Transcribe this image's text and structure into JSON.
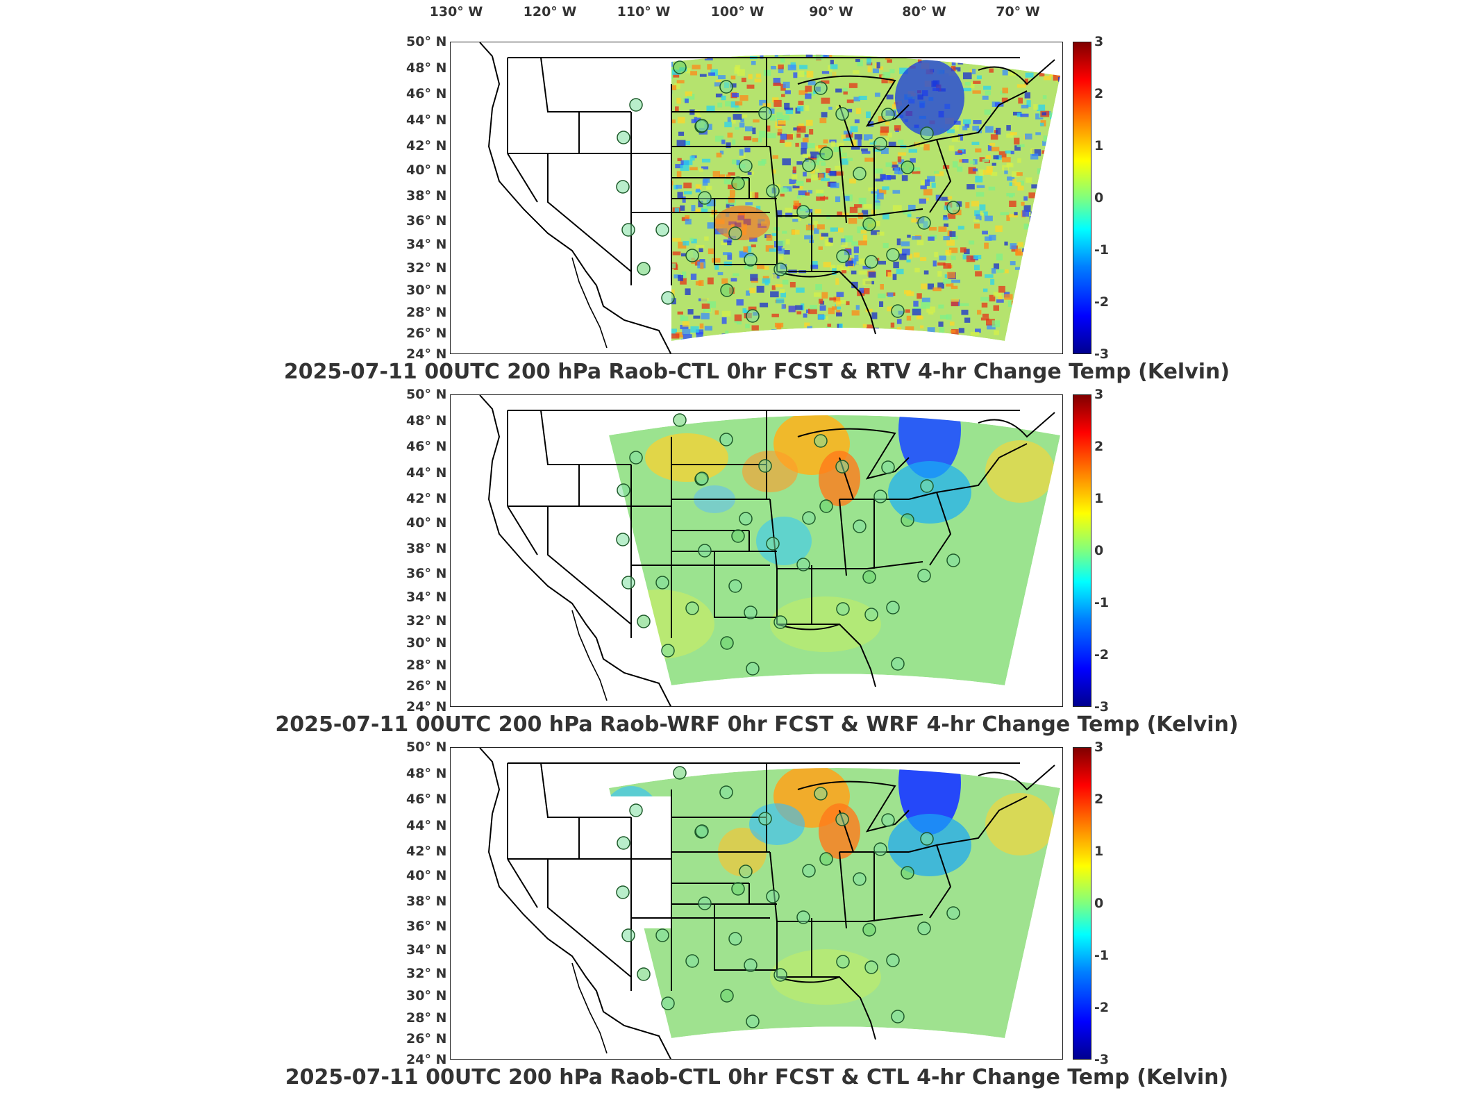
{
  "longitude_labels": [
    "130° W",
    "120° W",
    "110° W",
    "100° W",
    "90° W",
    "80° W",
    "70° W"
  ],
  "latitude_labels": [
    "50° N",
    "48° N",
    "46° N",
    "44° N",
    "42° N",
    "40° N",
    "38° N",
    "36° N",
    "34° N",
    "32° N",
    "30° N",
    "28° N",
    "26° N",
    "24° N"
  ],
  "colorbar": {
    "ticks": [
      "3",
      "2",
      "1",
      "0",
      "-1",
      "-2",
      "-3"
    ],
    "min": -3,
    "max": 3,
    "colormap": "jet",
    "unit": "Kelvin"
  },
  "panels": [
    {
      "title": "2025-07-11 00UTC 200 hPa Raob-CTL 0hr FCST & RTV 4-hr Change Temp (Kelvin)",
      "field_style": "noisy",
      "mean_fill": "#b5e36e"
    },
    {
      "title": "2025-07-11 00UTC 200 hPa Raob-WRF 0hr FCST & WRF 4-hr Change Temp (Kelvin)",
      "field_style": "smooth",
      "mean_fill": "#9be38f"
    },
    {
      "title": "2025-07-11 00UTC 200 hPa Raob-CTL 0hr FCST & CTL 4-hr Change Temp (Kelvin)",
      "field_style": "smooth",
      "mean_fill": "#9fe28f"
    }
  ],
  "colors": {
    "domain_fill": "#a8e08a",
    "high": "#ff8a1a",
    "low": "#1f55ff",
    "marker_stroke": "#1e5a2a",
    "border": "#000000"
  },
  "raob_station_count": 33
}
